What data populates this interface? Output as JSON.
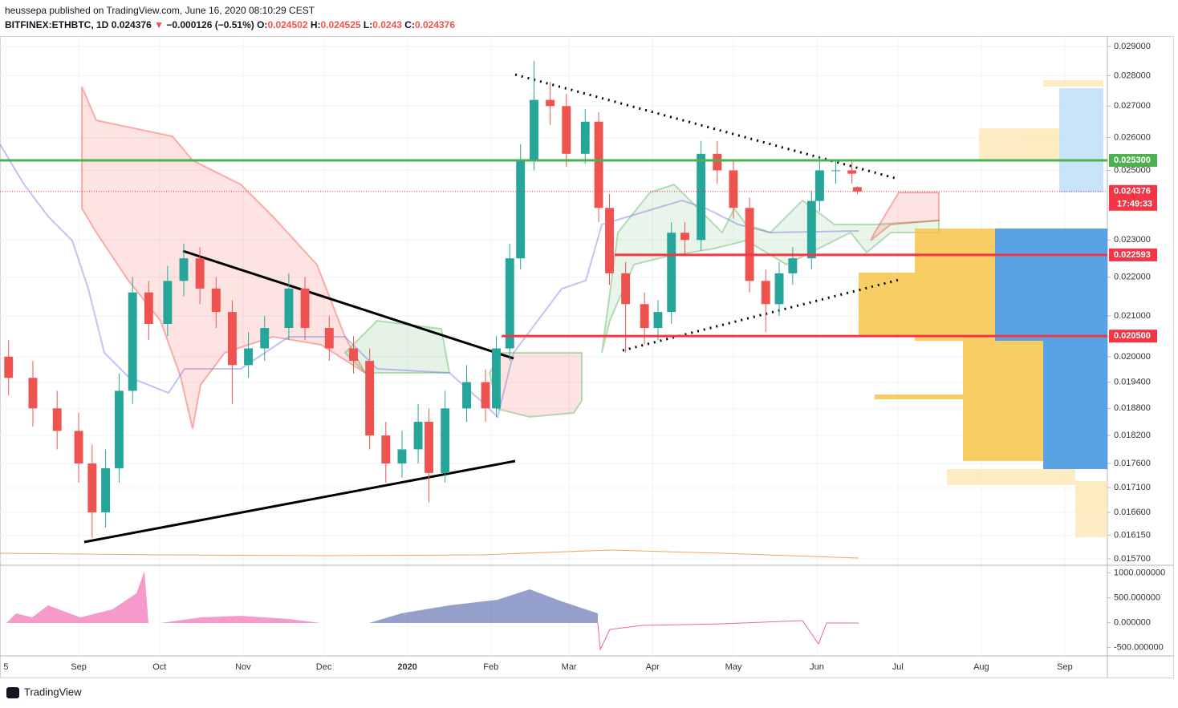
{
  "header": {
    "published": "heussepa published on TradingView.com, June 16, 2020 08:10:29 CEST",
    "symbol": "BITFINEX:ETHBTC, 1D",
    "arrow": "▼",
    "change": "−0.000126 (−0.51%)",
    "ohlc_labels": [
      "O:",
      "H:",
      "L:",
      "C:"
    ]
  },
  "chart_data": {
    "type": "candlestick",
    "log_scale": true,
    "grid": true,
    "up_color": "#26a69a",
    "down_color": "#ef5350",
    "x": [
      -26,
      -17,
      -8,
      0,
      5,
      10,
      15,
      20,
      26,
      33,
      39,
      45,
      51,
      57,
      63,
      69,
      78,
      84,
      93,
      102,
      108,
      114,
      120,
      126,
      130,
      136,
      144,
      151,
      155,
      160,
      164,
      169,
      175,
      181,
      188,
      193,
      197,
      203,
      210,
      215,
      220,
      225,
      231,
      237,
      243,
      249,
      255,
      260,
      265,
      272,
      275,
      281,
      287,
      289
    ],
    "open": [
      0.02,
      0.0195,
      0.0188,
      0.0183,
      0.0176,
      0.0166,
      0.0175,
      0.0192,
      0.0216,
      0.0208,
      0.0219,
      0.0225,
      0.0217,
      0.0211,
      0.0198,
      0.0202,
      0.0207,
      0.0217,
      0.0207,
      0.0202,
      0.0199,
      0.0182,
      0.0176,
      0.0179,
      0.0185,
      0.0174,
      0.0188,
      0.0194,
      0.0188,
      0.0202,
      0.0225,
      0.0253,
      0.0272,
      0.027,
      0.0255,
      0.0265,
      0.0239,
      0.0221,
      0.0213,
      0.0207,
      0.0211,
      0.0232,
      0.023,
      0.0255,
      0.025,
      0.0239,
      0.0219,
      0.0213,
      0.0221,
      0.0225,
      0.0241,
      0.025,
      0.025,
      0.024502
    ],
    "high": [
      0.0204,
      0.0199,
      0.0192,
      0.0187,
      0.018,
      0.0179,
      0.0196,
      0.022,
      0.0219,
      0.0223,
      0.0229,
      0.0228,
      0.022,
      0.0214,
      0.0206,
      0.021,
      0.0221,
      0.022,
      0.021,
      0.0205,
      0.0202,
      0.0185,
      0.0183,
      0.0189,
      0.0188,
      0.0192,
      0.0198,
      0.0197,
      0.0205,
      0.0229,
      0.0258,
      0.0285,
      0.0278,
      0.0274,
      0.0269,
      0.0268,
      0.0243,
      0.0224,
      0.0216,
      0.0214,
      0.0235,
      0.0235,
      0.0259,
      0.0259,
      0.0253,
      0.0242,
      0.0222,
      0.0224,
      0.0228,
      0.0244,
      0.0254,
      0.0253,
      0.0253,
      0.024525
    ],
    "low": [
      0.0191,
      0.0184,
      0.0179,
      0.0172,
      0.0161,
      0.0163,
      0.0172,
      0.0189,
      0.0204,
      0.0205,
      0.0215,
      0.0213,
      0.0207,
      0.0189,
      0.0195,
      0.0199,
      0.0204,
      0.0204,
      0.0199,
      0.0196,
      0.0179,
      0.0172,
      0.0173,
      0.0176,
      0.0168,
      0.0172,
      0.0185,
      0.0185,
      0.0186,
      0.0199,
      0.0222,
      0.025,
      0.0264,
      0.0251,
      0.0252,
      0.0235,
      0.0218,
      0.0201,
      0.0203,
      0.0204,
      0.0208,
      0.0226,
      0.0227,
      0.0246,
      0.0236,
      0.0216,
      0.0206,
      0.021,
      0.0218,
      0.0222,
      0.0238,
      0.0246,
      0.0246,
      0.0243
    ],
    "close": [
      0.0195,
      0.0188,
      0.0183,
      0.0176,
      0.0166,
      0.0175,
      0.0192,
      0.0216,
      0.0208,
      0.0219,
      0.0225,
      0.0217,
      0.0211,
      0.0198,
      0.0202,
      0.0207,
      0.0217,
      0.0207,
      0.0202,
      0.0199,
      0.0182,
      0.0176,
      0.0179,
      0.0185,
      0.0174,
      0.0188,
      0.0194,
      0.0188,
      0.0202,
      0.0225,
      0.0253,
      0.0272,
      0.027,
      0.0255,
      0.0265,
      0.0239,
      0.0221,
      0.0213,
      0.0207,
      0.0211,
      0.0232,
      0.023,
      0.0255,
      0.025,
      0.0239,
      0.0219,
      0.0213,
      0.0221,
      0.0225,
      0.0241,
      0.025,
      0.025,
      0.0249,
      0.024376
    ],
    "xlim": [
      -29.2,
      381.8
    ],
    "xticks": [
      {
        "value": -27,
        "label": "5"
      },
      {
        "value": 0,
        "label": "Sep"
      },
      {
        "value": 30,
        "label": "Oct"
      },
      {
        "value": 61,
        "label": "Nov"
      },
      {
        "value": 91,
        "label": "Dec"
      },
      {
        "value": 122,
        "label": "2020"
      },
      {
        "value": 153,
        "label": "Feb"
      },
      {
        "value": 182,
        "label": "Mar"
      },
      {
        "value": 213,
        "label": "Apr"
      },
      {
        "value": 243,
        "label": "May"
      },
      {
        "value": 274,
        "label": "Jun"
      },
      {
        "value": 304,
        "label": "Jul"
      },
      {
        "value": 335,
        "label": "Aug"
      },
      {
        "value": 366,
        "label": "Sep"
      }
    ],
    "ylim": [
      0.01558,
      0.02936
    ],
    "yticks": [
      {
        "value": 0.029,
        "label": "0.029000"
      },
      {
        "value": 0.028,
        "label": "0.028000"
      },
      {
        "value": 0.027,
        "label": "0.027000"
      },
      {
        "value": 0.026,
        "label": "0.026000"
      },
      {
        "value": 0.025,
        "label": "0.025000"
      },
      {
        "value": 0.023,
        "label": "0.023000"
      },
      {
        "value": 0.022,
        "label": "0.022000"
      },
      {
        "value": 0.021,
        "label": "0.021000"
      },
      {
        "value": 0.02,
        "label": "0.020000"
      },
      {
        "value": 0.0194,
        "label": "0.019400"
      },
      {
        "value": 0.0188,
        "label": "0.018800"
      },
      {
        "value": 0.0182,
        "label": "0.018200"
      },
      {
        "value": 0.0176,
        "label": "0.017600"
      },
      {
        "value": 0.0171,
        "label": "0.017100"
      },
      {
        "value": 0.0166,
        "label": "0.016600"
      },
      {
        "value": 0.01615,
        "label": "0.016150"
      },
      {
        "value": 0.0157,
        "label": "0.015700"
      }
    ],
    "levels": [
      {
        "value": 0.0253,
        "label": "0.025300",
        "color": "#4caf50"
      },
      {
        "value": 0.022593,
        "label": "0.022593",
        "color": "#f23645",
        "start": 199
      },
      {
        "value": 0.0205,
        "label": "0.020500",
        "color": "#f23645",
        "start": 157
      }
    ],
    "last_price_color": "#f23645",
    "countdown": "17:49:33",
    "oscillator": {
      "ylim": [
        -668,
        1156
      ],
      "yticks": [
        {
          "value": 1000,
          "label": "1000.000000"
        },
        {
          "value": 500,
          "label": "500.000000"
        },
        {
          "value": 0,
          "label": "0.000000"
        },
        {
          "value": -500,
          "label": "-500.000000"
        }
      ]
    }
  },
  "footer": {
    "brand": "TradingView"
  }
}
